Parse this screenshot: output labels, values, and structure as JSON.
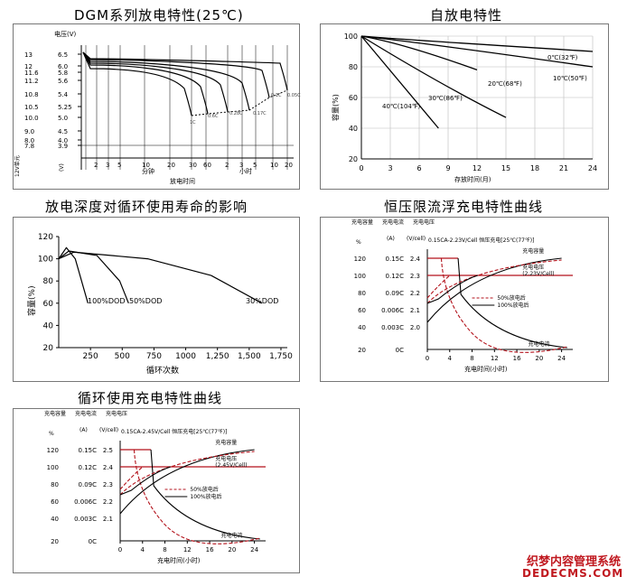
{
  "watermark": {
    "line1": "织梦内容管理系统",
    "line2": "DEDECMS.COM"
  },
  "chart_data": [
    {
      "id": "dgm",
      "type": "line",
      "title": "DGM系列放电特性(25℃)",
      "ylabel": "电压(V)",
      "left_axis_note": "12V单元",
      "left_axis_note2": "(V)",
      "y_ticks_6v": [
        "6.5",
        "6.0",
        "5.8",
        "5.6",
        "5.4",
        "5.25",
        "5.0",
        "4.5",
        "4.0",
        "3.9"
      ],
      "y_ticks_12v": [
        "13",
        "12",
        "11.6",
        "11.2",
        "10.8",
        "10.5",
        "10.0",
        "9.0",
        "8.0",
        "7.8"
      ],
      "x_ticks_min": [
        "1",
        "2",
        "3",
        "5",
        "10",
        "20",
        "30",
        "60"
      ],
      "x_ticks_hr": [
        "2",
        "3",
        "5",
        "10",
        "20"
      ],
      "x_group_labels": {
        "min": "分钟",
        "hr": "小时"
      },
      "xlabel": "放电时间",
      "curve_labels": [
        "1C",
        "0.6C",
        "0.28C",
        "0.17C",
        "0.1C",
        "0.05C"
      ],
      "curves": [
        {
          "name": "1C",
          "end_min": 25,
          "end_v": 5.0
        },
        {
          "name": "0.6C",
          "end_min": 45,
          "end_v": 5.02
        },
        {
          "name": "0.28C",
          "end_min": 120,
          "end_v": 5.1
        },
        {
          "name": "0.17C",
          "end_min": 240,
          "end_v": 5.15
        },
        {
          "name": "0.1C",
          "end_min": 600,
          "end_v": 5.2
        },
        {
          "name": "0.05C",
          "end_min": 1200,
          "end_v": 5.25
        }
      ]
    },
    {
      "id": "self",
      "type": "line",
      "title": "自放电特性",
      "ylabel": "容量(%)",
      "xlabel": "存放时间(月)",
      "x_ticks": [
        "0",
        "3",
        "6",
        "9",
        "12",
        "15",
        "18",
        "21",
        "24"
      ],
      "y_ticks": [
        "100",
        "80",
        "60",
        "40",
        "20"
      ],
      "ylim": [
        20,
        100
      ],
      "xlim": [
        0,
        24
      ],
      "series": [
        {
          "name": "0℃(32℉)",
          "x": [
            0,
            24
          ],
          "y": [
            100,
            90
          ]
        },
        {
          "name": "10℃(50℉)",
          "x": [
            0,
            24
          ],
          "y": [
            100,
            80
          ]
        },
        {
          "name": "20℃(68℉)",
          "x": [
            0,
            12
          ],
          "y": [
            100,
            78
          ]
        },
        {
          "name": "30℃(86℉)",
          "x": [
            0,
            15
          ],
          "y": [
            100,
            47
          ]
        },
        {
          "name": "40℃(104℉)",
          "x": [
            0,
            8
          ],
          "y": [
            100,
            40
          ]
        }
      ]
    },
    {
      "id": "dod",
      "type": "line",
      "title": "放电深度对循环使用寿命的影响",
      "ylabel": "容量(%)",
      "xlabel": "循环次数",
      "x_ticks": [
        "250",
        "500",
        "750",
        "1000",
        "1,250",
        "1,500",
        "1,750"
      ],
      "y_ticks": [
        "120",
        "100",
        "80",
        "60",
        "40",
        "20"
      ],
      "ylim": [
        20,
        120
      ],
      "xlim": [
        0,
        1800
      ],
      "series": [
        {
          "name": "100%DOD",
          "x": [
            0,
            60,
            130,
            230
          ],
          "y": [
            100,
            110,
            100,
            60
          ]
        },
        {
          "name": "50%DOD",
          "x": [
            0,
            80,
            300,
            480,
            550
          ],
          "y": [
            100,
            107,
            103,
            80,
            60
          ]
        },
        {
          "name": "30%DOD",
          "x": [
            0,
            120,
            700,
            1200,
            1600
          ],
          "y": [
            100,
            106,
            100,
            85,
            60
          ]
        }
      ]
    },
    {
      "id": "float",
      "type": "line",
      "title": "恒压限流浮充电特性曲线",
      "left_headers": [
        "充电容量",
        "充电电流",
        "充电电压"
      ],
      "unit_labels": [
        "%",
        "(A)",
        "(V/cell)"
      ],
      "condition": "0.15CA-2.23V/Cell 恒压充电[25℃(77℉)]",
      "pct_ticks": [
        "120",
        "100",
        "80",
        "60",
        "40",
        "20"
      ],
      "current_ticks": [
        "0.15C",
        "0.12C",
        "0.09C",
        "0.006C",
        "0.003C",
        "0C"
      ],
      "volt_ticks": [
        "2.4",
        "2.3",
        "2.2",
        "2.1",
        "2.0"
      ],
      "x_ticks": [
        "0",
        "4",
        "8",
        "12",
        "16",
        "20",
        "24"
      ],
      "xlabel": "充电时间(小时)",
      "curve_labels": {
        "capacity": "充电容量",
        "voltage": "充电电压",
        "voltage_value": "(2.23V/Cell)",
        "current": "充电电流"
      },
      "legend": [
        "50%放电后",
        "100%放电后"
      ]
    },
    {
      "id": "cycle",
      "type": "line",
      "title": "循环使用充电特性曲线",
      "left_headers": [
        "充电容量",
        "充电电流",
        "充电电压"
      ],
      "unit_labels": [
        "%",
        "(A)",
        "(V/cell)"
      ],
      "condition": "0.15CA-2.45V/Cell 恒压充电[25℃(77℉)]",
      "pct_ticks": [
        "120",
        "100",
        "80",
        "60",
        "40",
        "20"
      ],
      "current_ticks": [
        "0.15C",
        "0.12C",
        "0.09C",
        "0.006C",
        "0.003C",
        "0C"
      ],
      "volt_ticks": [
        "2.5",
        "2.4",
        "2.3",
        "2.2",
        "2.1"
      ],
      "x_ticks": [
        "0",
        "4",
        "8",
        "12",
        "16",
        "20",
        "24"
      ],
      "xlabel": "充电时间(小时)",
      "curve_labels": {
        "capacity": "充电容量",
        "voltage": "充电电压",
        "voltage_value": "(2.45V/Cell)",
        "current": "充电电流"
      },
      "legend": [
        "50%放电后",
        "100%放电后"
      ]
    }
  ]
}
